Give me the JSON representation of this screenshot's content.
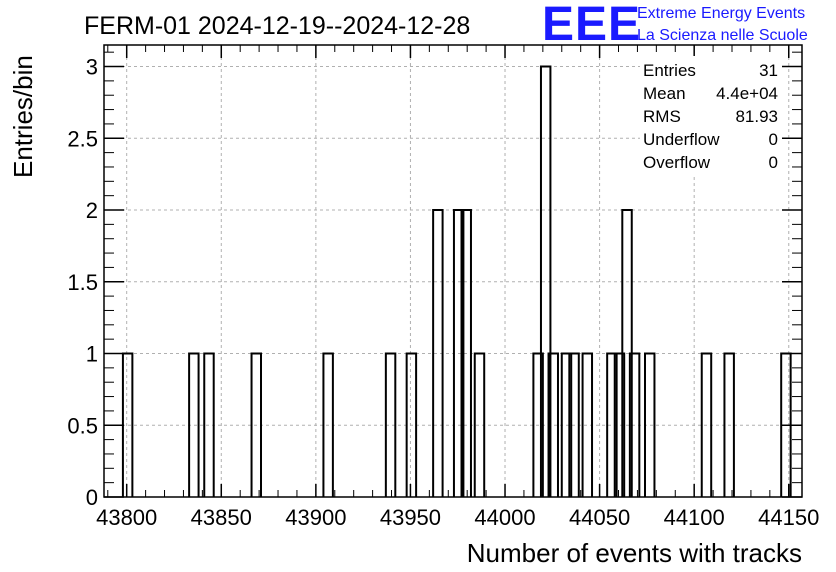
{
  "chart_data": {
    "type": "bar",
    "title": "FERM-01 2024-12-19--2024-12-28",
    "xlabel": "Number of events with tracks",
    "ylabel": "Entries/bin",
    "xlim": [
      43788,
      44157
    ],
    "ylim": [
      0,
      3.15
    ],
    "bin_width": 5,
    "x_ticks": [
      43800,
      43850,
      43900,
      43950,
      44000,
      44050,
      44100,
      44150
    ],
    "y_ticks": [
      0,
      0.5,
      1,
      1.5,
      2,
      2.5,
      3
    ],
    "y_tick_labels": [
      "0",
      "0.5",
      "1",
      "1.5",
      "2",
      "2.5",
      "3"
    ],
    "grid": true,
    "bins": [
      {
        "x": 43798,
        "value": 1
      },
      {
        "x": 43833,
        "value": 1
      },
      {
        "x": 43841,
        "value": 1
      },
      {
        "x": 43866,
        "value": 1
      },
      {
        "x": 43904,
        "value": 1
      },
      {
        "x": 43937,
        "value": 1
      },
      {
        "x": 43948,
        "value": 1
      },
      {
        "x": 43962,
        "value": 2
      },
      {
        "x": 43973,
        "value": 2
      },
      {
        "x": 43977,
        "value": 2
      },
      {
        "x": 43984,
        "value": 1
      },
      {
        "x": 44015,
        "value": 1
      },
      {
        "x": 44019,
        "value": 3
      },
      {
        "x": 44023,
        "value": 1
      },
      {
        "x": 44030,
        "value": 1
      },
      {
        "x": 44034,
        "value": 1
      },
      {
        "x": 44041,
        "value": 1
      },
      {
        "x": 44054,
        "value": 1
      },
      {
        "x": 44058,
        "value": 1
      },
      {
        "x": 44062,
        "value": 2
      },
      {
        "x": 44066,
        "value": 1
      },
      {
        "x": 44074,
        "value": 1
      },
      {
        "x": 44104,
        "value": 1
      },
      {
        "x": 44116,
        "value": 1
      },
      {
        "x": 44146,
        "value": 1
      }
    ],
    "stats": [
      {
        "label": "Entries",
        "value": "31"
      },
      {
        "label": "Mean",
        "value": "4.4e+04"
      },
      {
        "label": "RMS",
        "value": "81.93"
      },
      {
        "label": "Underflow",
        "value": "0"
      },
      {
        "label": "Overflow",
        "value": "0"
      }
    ],
    "colors": {
      "line": "#000000",
      "grid": "#b0b0b0"
    }
  },
  "logo": {
    "letters": "EEE",
    "line1": "Extreme Energy Events",
    "line2": "La Scienza nelle Scuole",
    "color": "#1a1aff"
  }
}
